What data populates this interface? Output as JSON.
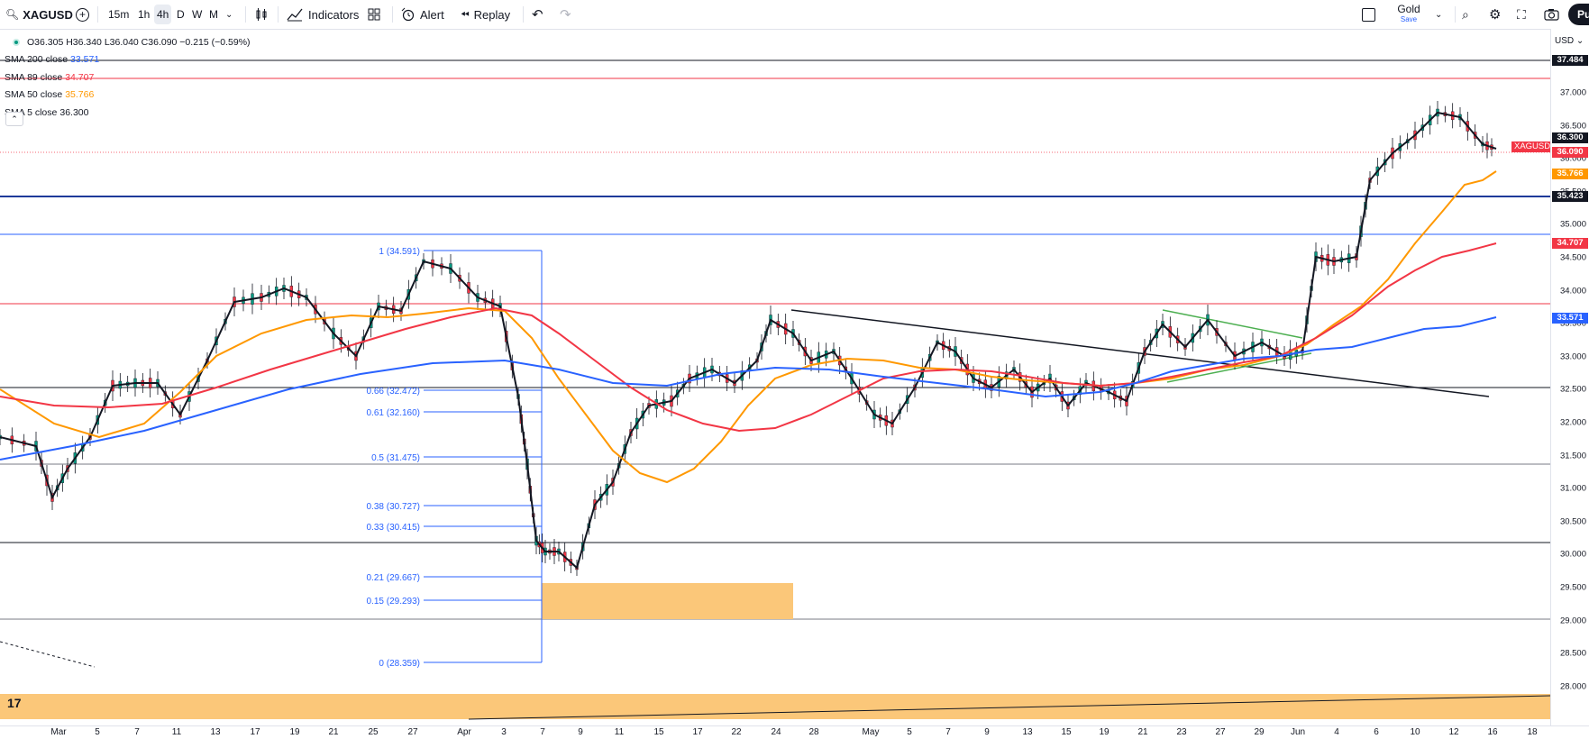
{
  "toolbar": {
    "symbol": "XAGUSD",
    "intervals": [
      "15m",
      "1h",
      "4h",
      "D",
      "W",
      "M"
    ],
    "active_interval": "4h",
    "indicators_label": "Indicators",
    "alert_label": "Alert",
    "replay_label": "Replay",
    "layout_name": "Gold",
    "layout_save_label": "Save",
    "avatar_text": "Pu"
  },
  "legend": {
    "ohlc": "O36.305 H36.340 L36.040 C36.090 −0.215 (−0.59%)",
    "sma": [
      {
        "label": "SMA 200 close",
        "value": "33.571",
        "color": "#2962ff"
      },
      {
        "label": "SMA 89 close",
        "value": "34.707",
        "color": "#f23645"
      },
      {
        "label": "SMA 50 close",
        "value": "35.766",
        "color": "#ff9800"
      },
      {
        "label": "SMA 5 close",
        "value": "36.300",
        "color": "#131722"
      }
    ]
  },
  "currency": "USD",
  "price_ticks": [
    "37.000",
    "36.500",
    "36.000",
    "35.500",
    "35.000",
    "34.500",
    "34.000",
    "33.500",
    "33.000",
    "32.500",
    "32.000",
    "31.500",
    "31.000",
    "30.500",
    "30.000",
    "29.500",
    "29.000",
    "28.500",
    "28.000"
  ],
  "price_labels": [
    {
      "text": "37.484",
      "bg": "#131722",
      "value": 37.484
    },
    {
      "text": "36.300",
      "bg": "#131722",
      "value": 36.3
    },
    {
      "text": "36.090",
      "bg": "#f23645",
      "value": 36.09
    },
    {
      "text": "35.766",
      "bg": "#ff9800",
      "value": 35.766
    },
    {
      "text": "35.423",
      "bg": "#131722",
      "value": 35.423
    },
    {
      "text": "34.707",
      "bg": "#f23645",
      "value": 34.707
    },
    {
      "text": "33.571",
      "bg": "#2962ff",
      "value": 33.571
    }
  ],
  "symbol_label": "XAGUSD",
  "time_ticks": [
    "Mar",
    "5",
    "7",
    "11",
    "13",
    "17",
    "19",
    "21",
    "25",
    "27",
    "Apr",
    "3",
    "7",
    "9",
    "11",
    "15",
    "17",
    "22",
    "24",
    "28",
    "May",
    "5",
    "7",
    "9",
    "13",
    "15",
    "19",
    "21",
    "23",
    "27",
    "29",
    "Jun",
    "4",
    "6",
    "10",
    "12",
    "16",
    "18"
  ],
  "fib_levels": [
    {
      "label": "1 (34.591)",
      "price": 34.591
    },
    {
      "label": "0.66 (32.472)",
      "price": 32.472
    },
    {
      "label": "0.61 (32.160)",
      "price": 32.16
    },
    {
      "label": "0.5 (31.475)",
      "price": 31.475
    },
    {
      "label": "0.38 (30.727)",
      "price": 30.727
    },
    {
      "label": "0.33 (30.415)",
      "price": 30.415
    },
    {
      "label": "0.21 (29.667)",
      "price": 29.667
    },
    {
      "label": "0.15 (29.293)",
      "price": 29.293
    },
    {
      "label": "0 (28.359)",
      "price": 28.359
    }
  ],
  "colors": {
    "bull": "#089981",
    "bear": "#f23645",
    "sma200": "#2962ff",
    "sma89": "#f23645",
    "sma50": "#ff9800",
    "sma5": "#131722",
    "zone": "#fbc779"
  }
}
